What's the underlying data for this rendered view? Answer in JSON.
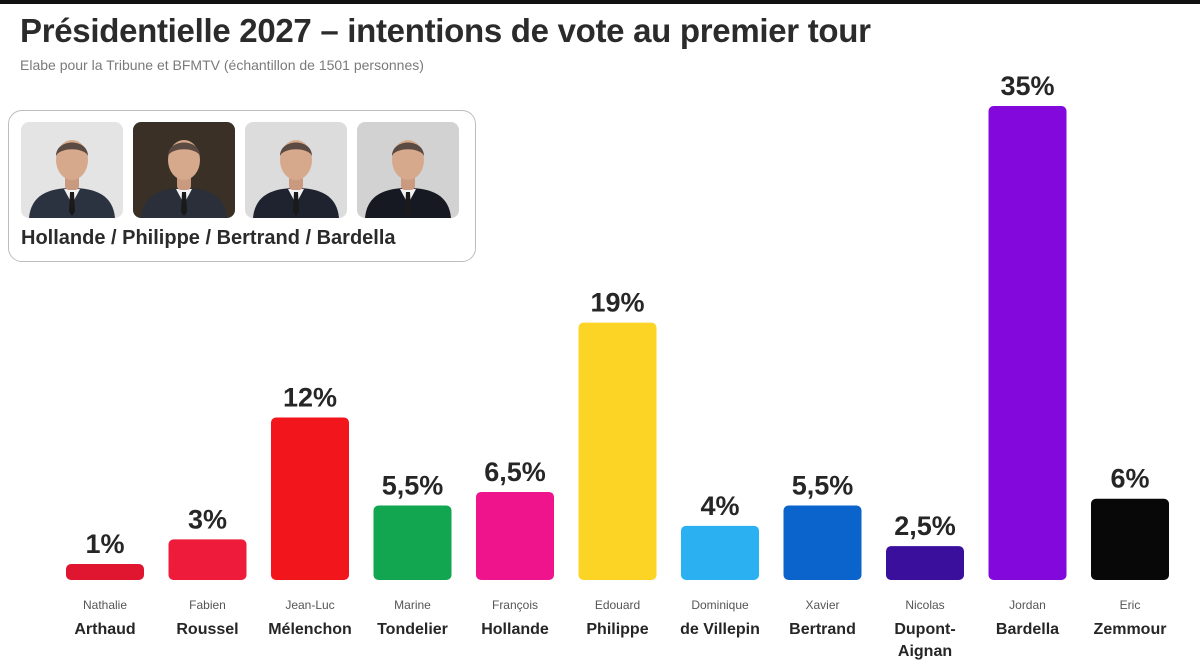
{
  "title": "Présidentielle 2027 – intentions de vote au premier tour",
  "subtitle": "Elabe pour la Tribune et  BFMTV (échantillon de 1501 personnes)",
  "scenario": {
    "caption": "Hollande / Philippe / Bertrand / Bardella",
    "photos": [
      {
        "name": "Hollande",
        "bg": "#e4e4e4",
        "suit": "#2c3340"
      },
      {
        "name": "Philippe",
        "bg": "#3a3026",
        "suit": "#2a2f3a"
      },
      {
        "name": "Bertrand",
        "bg": "#dcdcdc",
        "suit": "#1f2330"
      },
      {
        "name": "Bardella",
        "bg": "#d2d2d2",
        "suit": "#161922"
      }
    ]
  },
  "chart_data": {
    "type": "bar",
    "title": "Présidentielle 2027 – intentions de vote au premier tour",
    "unit": "%",
    "ylim": [
      0,
      35
    ],
    "grid": false,
    "candidates": [
      {
        "first": "Nathalie",
        "last": "Arthaud",
        "value": 1,
        "label": "1%",
        "color": "#e0152f"
      },
      {
        "first": "Fabien",
        "last": "Roussel",
        "value": 3,
        "label": "3%",
        "color": "#ee1c3a"
      },
      {
        "first": "Jean-Luc",
        "last": "Mélenchon",
        "value": 12,
        "label": "12%",
        "color": "#f2151b"
      },
      {
        "first": "Marine",
        "last": "Tondelier",
        "value": 5.5,
        "label": "5,5%",
        "color": "#11a64f"
      },
      {
        "first": "François",
        "last": "Hollande",
        "value": 6.5,
        "label": "6,5%",
        "color": "#f0148c"
      },
      {
        "first": "Edouard",
        "last": "Philippe",
        "value": 19,
        "label": "19%",
        "color": "#fcd426"
      },
      {
        "first": "Dominique",
        "last": "de Villepin",
        "value": 4,
        "label": "4%",
        "color": "#2bb0f2"
      },
      {
        "first": "Xavier",
        "last": "Bertrand",
        "value": 5.5,
        "label": "5,5%",
        "color": "#0a64cc"
      },
      {
        "first": "Nicolas",
        "last": "Dupont-",
        "last2": "Aignan",
        "value": 2.5,
        "label": "2,5%",
        "color": "#3a0f9c"
      },
      {
        "first": "Jordan",
        "last": "Bardella",
        "value": 35,
        "label": "35%",
        "color": "#8208dc"
      },
      {
        "first": "Eric",
        "last": "Zemmour",
        "value": 6,
        "label": "6%",
        "color": "#080808"
      }
    ]
  }
}
